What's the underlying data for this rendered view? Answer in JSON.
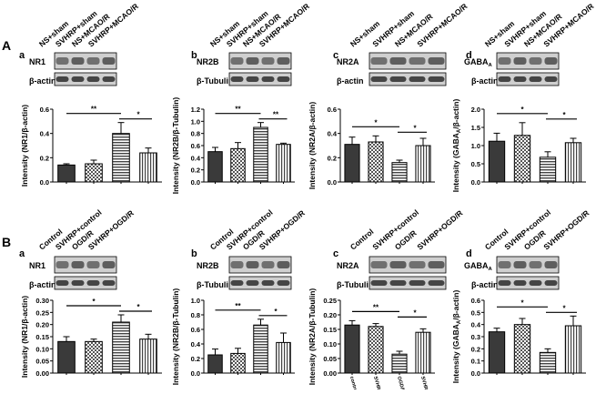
{
  "sections": [
    {
      "label": "A",
      "categories": [
        "NS+sham",
        "SVHRP+sham",
        "NS+MCAO/R",
        "SVHRP+MCAO/R"
      ]
    },
    {
      "label": "B",
      "categories": [
        "Control",
        "SVHRP+control",
        "OGD/R",
        "SVHRP+OGD/R"
      ]
    }
  ],
  "colors": {
    "bar_dark": "#3a3a3a",
    "bar_check": "#555555",
    "bar_stripe": "#555555",
    "bar_vstripe": "#555555",
    "blot_bg": "#cfcfcf",
    "blot_band": "#222222"
  },
  "chart_data": [
    {
      "type": "bar",
      "panel": "a",
      "blot_top": "NR1",
      "blot_bottom": "β-actin",
      "categories": [
        "NS+sham",
        "SVHRP+sham",
        "NS+MCAO/R",
        "SVHRP+MCAO/R"
      ],
      "values": [
        0.14,
        0.15,
        0.4,
        0.24
      ],
      "errors": [
        0.01,
        0.03,
        0.09,
        0.04
      ],
      "ylim": [
        0,
        0.6
      ],
      "yticks": [
        "0.0",
        "0.2",
        "0.4",
        "0.6"
      ],
      "ylabel": "Intensity (NR1/β-actin)",
      "significance": [
        "**",
        "*"
      ]
    },
    {
      "type": "bar",
      "panel": "b",
      "blot_top": "NR2B",
      "blot_bottom": "β-Tubulin",
      "categories": [
        "NS+sham",
        "SVHRP+sham",
        "NS+MCAO/R",
        "SVHRP+MCAO/R"
      ],
      "values": [
        0.5,
        0.55,
        0.9,
        0.62
      ],
      "errors": [
        0.07,
        0.1,
        0.08,
        0.02
      ],
      "ylim": [
        0,
        1.2
      ],
      "yticks": [
        "0.0",
        "0.2",
        "0.4",
        "0.6",
        "0.8",
        "1.0",
        "1.2"
      ],
      "ylabel": "Intensity (NR2B/β-Tubulin)",
      "significance": [
        "**",
        "**"
      ]
    },
    {
      "type": "bar",
      "panel": "c",
      "blot_top": "NR2A",
      "blot_bottom": "β-actin",
      "categories": [
        "NS+sham",
        "SVHRP+sham",
        "NS+MCAO/R",
        "SVHRP+MCAO/R"
      ],
      "values": [
        0.31,
        0.33,
        0.16,
        0.3
      ],
      "errors": [
        0.06,
        0.05,
        0.02,
        0.06
      ],
      "ylim": [
        0,
        0.6
      ],
      "yticks": [
        "0.0",
        "0.2",
        "0.4",
        "0.6"
      ],
      "ylabel": "Intensity (NR2A/β-actin)",
      "significance": [
        "*",
        "*"
      ]
    },
    {
      "type": "bar",
      "panel": "d",
      "blot_top": "GABAA",
      "blot_bottom": "β-actin",
      "categories": [
        "NS+sham",
        "SVHRP+sham",
        "NS+MCAO/R",
        "SVHRP+MCAO/R"
      ],
      "values": [
        1.12,
        1.28,
        0.68,
        1.08
      ],
      "errors": [
        0.22,
        0.35,
        0.15,
        0.12
      ],
      "ylim": [
        0,
        2.0
      ],
      "yticks": [
        "0.0",
        "0.5",
        "1.0",
        "1.5",
        "2.0"
      ],
      "ylabel": "Intensity (GABAA/β-actin)",
      "significance": [
        "*",
        "*"
      ]
    },
    {
      "type": "bar",
      "panel": "a",
      "blot_top": "NR1",
      "blot_bottom": "β-actin",
      "categories": [
        "Control",
        "SVHRP+control",
        "OGD/R",
        "SVHRP+OGD/R"
      ],
      "values": [
        0.13,
        0.13,
        0.21,
        0.14
      ],
      "errors": [
        0.02,
        0.01,
        0.03,
        0.02
      ],
      "ylim": [
        0,
        0.3
      ],
      "yticks": [
        "0.00",
        "0.05",
        "0.10",
        "0.15",
        "0.20",
        "0.25",
        "0.30"
      ],
      "ylabel": "Intensity (NR1/β-actin)",
      "significance": [
        "*",
        "*"
      ]
    },
    {
      "type": "bar",
      "panel": "b",
      "blot_top": "NR2B",
      "blot_bottom": "β-Tubulin",
      "categories": [
        "Control",
        "SVHRP+control",
        "OGD/R",
        "SVHRP+OGD/R"
      ],
      "values": [
        0.25,
        0.27,
        0.66,
        0.42
      ],
      "errors": [
        0.08,
        0.07,
        0.08,
        0.13
      ],
      "ylim": [
        0,
        1.0
      ],
      "yticks": [
        "0.0",
        "0.2",
        "0.4",
        "0.6",
        "0.8",
        "1.0"
      ],
      "ylabel": "Intensity (NR2B/β-Tubulin)",
      "significance": [
        "**",
        "*"
      ]
    },
    {
      "type": "bar",
      "panel": "c",
      "blot_top": "NR2A",
      "blot_bottom": "β-Tubulin",
      "categories": [
        "Control",
        "SVHRP+control",
        "OGD/R",
        "SVHRP+OGD/R"
      ],
      "values": [
        0.165,
        0.16,
        0.065,
        0.14
      ],
      "errors": [
        0.015,
        0.01,
        0.01,
        0.012
      ],
      "ylim": [
        0,
        0.25
      ],
      "yticks": [
        "0.00",
        "0.05",
        "0.10",
        "0.15",
        "0.20",
        "0.25"
      ],
      "ylabel": "Intensity (NR2A/β-Tubulin)",
      "significance": [
        "**",
        "*"
      ],
      "bar_labels": [
        "control",
        "SVHRP+control",
        "OGD/R",
        "SVHRP+OGD/R"
      ]
    },
    {
      "type": "bar",
      "panel": "d",
      "blot_top": "GABAA",
      "blot_bottom": "β-actin",
      "categories": [
        "Control",
        "SVHRP+control",
        "OGD/R",
        "SVHRP+OGD/R"
      ],
      "values": [
        0.34,
        0.4,
        0.17,
        0.39
      ],
      "errors": [
        0.03,
        0.05,
        0.03,
        0.08
      ],
      "ylim": [
        0,
        0.6
      ],
      "yticks": [
        "0.0",
        "0.1",
        "0.2",
        "0.3",
        "0.4",
        "0.5",
        "0.6"
      ],
      "ylabel": "Intensity (GABAA/β-actin)",
      "significance": [
        "*",
        "*"
      ]
    }
  ]
}
